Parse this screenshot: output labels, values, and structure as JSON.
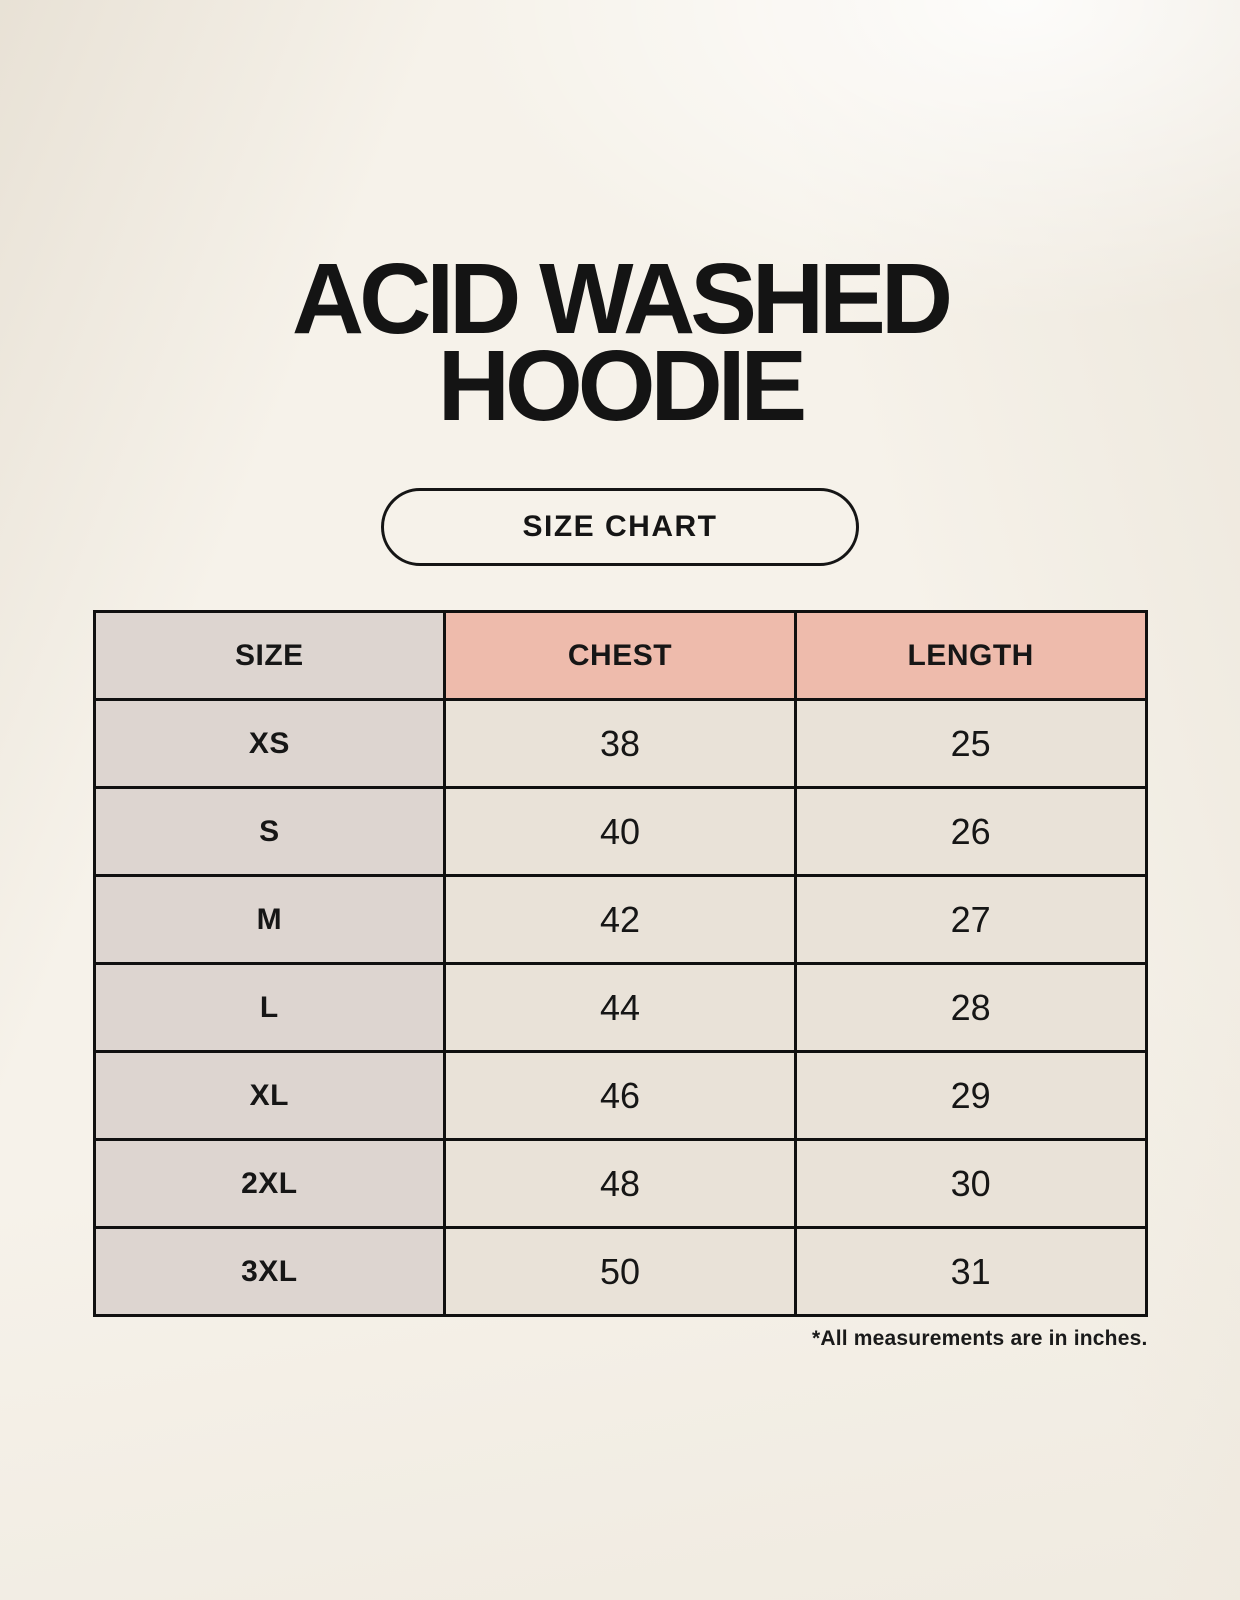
{
  "page": {
    "title_line1": "ACID WASHED",
    "title_line2": "HOODIE",
    "size_chart_button_label": "SIZE CHART",
    "footnote": "*All measurements are in inches."
  },
  "table": {
    "headers": [
      "SIZE",
      "CHEST",
      "LENGTH"
    ],
    "rows": [
      {
        "size": "XS",
        "chest": "38",
        "length": "25"
      },
      {
        "size": "S",
        "chest": "40",
        "length": "26"
      },
      {
        "size": "M",
        "chest": "42",
        "length": "27"
      },
      {
        "size": "L",
        "chest": "44",
        "length": "28"
      },
      {
        "size": "XL",
        "chest": "46",
        "length": "29"
      },
      {
        "size": "2XL",
        "chest": "48",
        "length": "30"
      },
      {
        "size": "3XL",
        "chest": "50",
        "length": "31"
      }
    ]
  },
  "colors": {
    "page_background": "#f6f2ea",
    "header_gray": "#ddd5d0",
    "header_salmon": "#eebbac",
    "cell_cream": "#e9e2d8",
    "table_border": "#101010",
    "text": "#141414"
  },
  "chart_data": {
    "type": "table",
    "title": "ACID WASHED HOODIE — SIZE CHART",
    "columns": [
      "SIZE",
      "CHEST",
      "LENGTH"
    ],
    "rows": [
      [
        "XS",
        38,
        25
      ],
      [
        "S",
        40,
        26
      ],
      [
        "M",
        42,
        27
      ],
      [
        "L",
        44,
        28
      ],
      [
        "XL",
        46,
        29
      ],
      [
        "2XL",
        48,
        30
      ],
      [
        "3XL",
        50,
        31
      ]
    ],
    "units": "inches",
    "note": "*All measurements are in inches."
  }
}
